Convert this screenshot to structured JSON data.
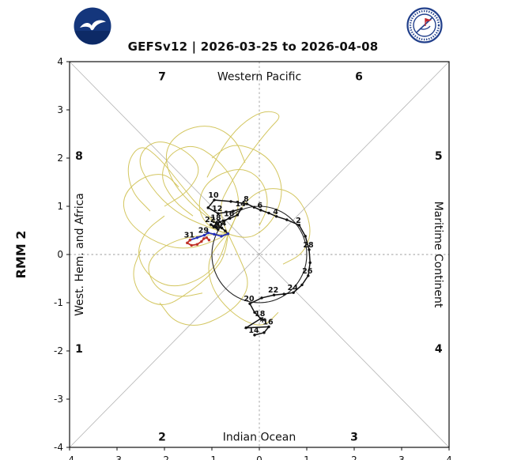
{
  "header": {
    "noaa_logo": "noaa-logo",
    "nws_logo": "nws-logo"
  },
  "chart_data": {
    "type": "line",
    "title": "GEFSv12 | 2026-03-25 to 2026-04-08",
    "xlabel": "",
    "ylabel": "RMM 2",
    "xlim": [
      -4,
      4
    ],
    "ylim": [
      -4,
      4
    ],
    "x_ticks": [
      -4,
      -3,
      -2,
      -1,
      0,
      1,
      2,
      3,
      4
    ],
    "y_ticks": [
      4,
      3,
      2,
      1,
      0,
      -1,
      -2,
      -3,
      -4
    ],
    "unit_circle_radius": 1,
    "grid": "diagonals + dashed crosshair",
    "legend_position": "none",
    "region_labels": {
      "top": "Western Pacific",
      "bottom": "Indian Ocean",
      "right": "Maritime Continent",
      "left": "West. Hem. and Africa"
    },
    "phase_labels": [
      {
        "label": "1",
        "x": -3.8,
        "y": -1.95
      },
      {
        "label": "2",
        "x": -2.05,
        "y": -3.78
      },
      {
        "label": "3",
        "x": 2.0,
        "y": -3.78
      },
      {
        "label": "4",
        "x": 3.78,
        "y": -1.95
      },
      {
        "label": "5",
        "x": 3.78,
        "y": 2.05
      },
      {
        "label": "6",
        "x": 2.1,
        "y": 3.7
      },
      {
        "label": "7",
        "x": -2.05,
        "y": 3.7
      },
      {
        "label": "8",
        "x": -3.8,
        "y": 2.05
      }
    ],
    "colors": {
      "ensemble": "#cfc04f",
      "observed": "#111111",
      "forecast_week1": "#2431b8",
      "forecast_week2": "#c03028",
      "grid": "#9e9e9e",
      "diagonal": "#b3b3b3"
    },
    "start_marker": {
      "symbol": "*",
      "x": 0.07,
      "y": -1.38
    },
    "series": [
      {
        "name": "observed-rmm",
        "color_key": "observed",
        "label_color": "#111111",
        "width": 1.5,
        "points": [
          [
            -0.1,
            -1.67,
            "14"
          ],
          [
            0.1,
            -1.62,
            ""
          ],
          [
            0.2,
            -1.5,
            "16"
          ],
          [
            -0.28,
            -1.52,
            ""
          ],
          [
            0.03,
            -1.33,
            "18"
          ],
          [
            -0.1,
            -1.2,
            ""
          ],
          [
            -0.2,
            -1.02,
            "20"
          ],
          [
            0.05,
            -0.9,
            ""
          ],
          [
            0.31,
            -0.84,
            "22"
          ],
          [
            0.52,
            -0.82,
            ""
          ],
          [
            0.72,
            -0.79,
            "24"
          ],
          [
            0.9,
            -0.63,
            ""
          ],
          [
            1.03,
            -0.44,
            "26"
          ],
          [
            1.07,
            -0.17,
            ""
          ],
          [
            1.05,
            0.1,
            "28"
          ],
          [
            0.97,
            0.38,
            ""
          ],
          [
            0.84,
            0.61,
            "2"
          ],
          [
            0.58,
            0.72,
            ""
          ],
          [
            0.36,
            0.79,
            "4"
          ],
          [
            0.2,
            0.86,
            ""
          ],
          [
            0.03,
            0.92,
            "6"
          ],
          [
            -0.11,
            0.98,
            ""
          ],
          [
            -0.26,
            1.05,
            "8"
          ],
          [
            -0.6,
            1.1,
            ""
          ],
          [
            -0.95,
            1.13,
            "10"
          ],
          [
            -1.08,
            0.97,
            ""
          ],
          [
            -0.87,
            0.85,
            "12"
          ],
          [
            -0.55,
            0.9,
            ""
          ],
          [
            -0.38,
            0.95,
            "14"
          ],
          [
            -0.46,
            0.82,
            ""
          ],
          [
            -0.62,
            0.75,
            "16"
          ],
          [
            -0.76,
            0.7,
            ""
          ],
          [
            -0.9,
            0.66,
            "18"
          ],
          [
            -0.93,
            0.58,
            ""
          ],
          [
            -0.87,
            0.52,
            "20"
          ],
          [
            -0.96,
            0.57,
            ""
          ],
          [
            -1.02,
            0.62,
            "22"
          ],
          [
            -0.9,
            0.57,
            ""
          ],
          [
            -0.79,
            0.55,
            "24"
          ],
          [
            -0.72,
            0.49,
            ""
          ],
          [
            -0.66,
            0.43,
            ""
          ]
        ]
      },
      {
        "name": "forecast-mean-week1",
        "color_key": "forecast_week1",
        "label_color": "#111111",
        "width": 1.8,
        "points": [
          [
            -0.66,
            0.43,
            ""
          ],
          [
            -0.8,
            0.38,
            ""
          ],
          [
            -0.95,
            0.42,
            ""
          ],
          [
            -1.08,
            0.45,
            ""
          ],
          [
            -1.16,
            0.4,
            "29"
          ],
          [
            -1.31,
            0.35,
            ""
          ],
          [
            -1.46,
            0.3,
            ""
          ]
        ]
      },
      {
        "name": "forecast-mean-week2",
        "color_key": "forecast_week2",
        "label_color": "#a02020",
        "width": 1.8,
        "points": [
          [
            -1.46,
            0.3,
            "31"
          ],
          [
            -1.52,
            0.24,
            ""
          ],
          [
            -1.43,
            0.19,
            ""
          ],
          [
            -1.31,
            0.21,
            ""
          ],
          [
            -1.22,
            0.27,
            ""
          ],
          [
            -1.17,
            0.33,
            ""
          ],
          [
            -1.11,
            0.35,
            ""
          ],
          [
            -1.06,
            0.3,
            ""
          ]
        ]
      }
    ],
    "ensemble_tracks": [
      [
        [
          -0.66,
          0.43
        ],
        [
          -1.2,
          0.6
        ],
        [
          -1.8,
          0.9
        ],
        [
          -2.3,
          1.4
        ],
        [
          -2.6,
          2.0
        ],
        [
          -2.2,
          2.4
        ],
        [
          -1.6,
          2.2
        ],
        [
          -1.2,
          1.8
        ],
        [
          -1.5,
          1.3
        ],
        [
          -2.0,
          1.0
        ]
      ],
      [
        [
          -0.66,
          0.43
        ],
        [
          -0.9,
          0.9
        ],
        [
          -0.6,
          1.5
        ],
        [
          -0.2,
          2.1
        ],
        [
          0.2,
          2.6
        ],
        [
          0.5,
          2.9
        ],
        [
          0.1,
          3.0
        ],
        [
          -0.4,
          2.7
        ],
        [
          -0.8,
          2.2
        ],
        [
          -1.1,
          1.6
        ]
      ],
      [
        [
          -0.66,
          0.43
        ],
        [
          -1.1,
          0.2
        ],
        [
          -1.7,
          0.1
        ],
        [
          -2.3,
          0.3
        ],
        [
          -2.8,
          0.7
        ],
        [
          -2.9,
          1.2
        ],
        [
          -2.5,
          1.6
        ],
        [
          -2.0,
          1.7
        ],
        [
          -1.7,
          1.4
        ]
      ],
      [
        [
          -0.66,
          0.43
        ],
        [
          -0.8,
          -0.1
        ],
        [
          -1.2,
          -0.5
        ],
        [
          -1.8,
          -0.7
        ],
        [
          -2.3,
          -0.5
        ],
        [
          -2.6,
          0.0
        ],
        [
          -2.4,
          0.5
        ],
        [
          -2.0,
          0.8
        ]
      ],
      [
        [
          -0.66,
          0.43
        ],
        [
          -0.4,
          0.9
        ],
        [
          -0.5,
          1.5
        ],
        [
          -0.9,
          2.0
        ],
        [
          -1.4,
          2.3
        ],
        [
          -1.9,
          2.1
        ],
        [
          -2.1,
          1.6
        ],
        [
          -1.8,
          1.1
        ],
        [
          -1.4,
          0.8
        ]
      ],
      [
        [
          -0.66,
          0.43
        ],
        [
          -1.0,
          0.5
        ],
        [
          -1.3,
          0.9
        ],
        [
          -1.2,
          1.4
        ],
        [
          -0.8,
          1.7
        ],
        [
          -0.3,
          1.8
        ],
        [
          0.1,
          1.5
        ],
        [
          0.2,
          1.0
        ],
        [
          0.0,
          0.6
        ]
      ],
      [
        [
          -0.66,
          0.43
        ],
        [
          -0.7,
          0.0
        ],
        [
          -1.0,
          -0.4
        ],
        [
          -1.5,
          -0.8
        ],
        [
          -2.0,
          -1.1
        ],
        [
          -2.5,
          -0.9
        ],
        [
          -2.7,
          -0.4
        ],
        [
          -2.5,
          0.1
        ]
      ],
      [
        [
          -0.66,
          0.43
        ],
        [
          -0.3,
          0.3
        ],
        [
          0.1,
          0.5
        ],
        [
          0.4,
          0.9
        ],
        [
          0.5,
          1.4
        ],
        [
          0.3,
          1.9
        ],
        [
          -0.1,
          2.2
        ],
        [
          -0.6,
          2.3
        ],
        [
          -1.0,
          2.0
        ]
      ],
      [
        [
          -0.66,
          0.43
        ],
        [
          -0.9,
          0.2
        ],
        [
          -1.1,
          -0.2
        ],
        [
          -1.0,
          -0.7
        ],
        [
          -0.7,
          -1.1
        ],
        [
          -0.3,
          -1.4
        ],
        [
          0.1,
          -1.5
        ],
        [
          0.4,
          -1.2
        ]
      ],
      [
        [
          -0.66,
          0.43
        ],
        [
          -1.4,
          0.4
        ],
        [
          -2.0,
          0.2
        ],
        [
          -2.4,
          -0.2
        ],
        [
          -2.2,
          -0.7
        ],
        [
          -1.7,
          -0.9
        ],
        [
          -1.2,
          -0.8
        ]
      ],
      [
        [
          -0.66,
          0.43
        ],
        [
          -0.5,
          0.8
        ],
        [
          -0.2,
          1.2
        ],
        [
          0.2,
          1.4
        ],
        [
          0.7,
          1.3
        ],
        [
          1.0,
          0.9
        ],
        [
          1.1,
          0.4
        ],
        [
          0.9,
          0.0
        ],
        [
          0.5,
          -0.2
        ]
      ],
      [
        [
          -0.66,
          0.43
        ],
        [
          -1.0,
          0.7
        ],
        [
          -1.5,
          1.1
        ],
        [
          -1.9,
          1.6
        ],
        [
          -2.0,
          2.2
        ],
        [
          -1.6,
          2.6
        ],
        [
          -1.0,
          2.7
        ],
        [
          -0.5,
          2.4
        ],
        [
          -0.3,
          1.9
        ]
      ],
      [
        [
          -0.66,
          0.43
        ],
        [
          -0.4,
          -0.1
        ],
        [
          -0.2,
          -0.6
        ],
        [
          -0.4,
          -1.0
        ],
        [
          -0.8,
          -1.3
        ],
        [
          -1.3,
          -1.5
        ],
        [
          -1.8,
          -1.4
        ],
        [
          -2.1,
          -1.0
        ]
      ],
      [
        [
          -0.66,
          0.43
        ],
        [
          -1.2,
          0.9
        ],
        [
          -1.7,
          1.5
        ],
        [
          -2.1,
          2.0
        ],
        [
          -2.5,
          2.3
        ],
        [
          -2.8,
          1.9
        ],
        [
          -2.7,
          1.3
        ],
        [
          -2.3,
          0.9
        ]
      ]
    ]
  }
}
